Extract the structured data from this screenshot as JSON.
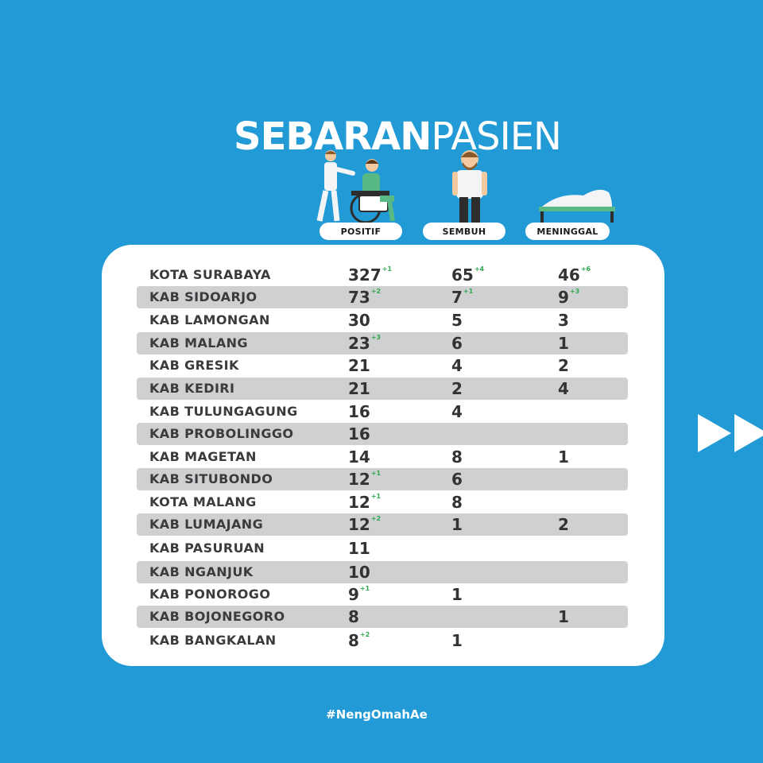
{
  "title": {
    "bold": "SEBARAN",
    "light": "PASIEN"
  },
  "columns": {
    "positif": "POSITIF",
    "sembuh": "SEMBUH",
    "meninggal": "MENINGGAL"
  },
  "rows": [
    {
      "name": "KOTA SURABAYA",
      "positif": "327",
      "positif_delta": "+1",
      "sembuh": "65",
      "sembuh_delta": "+4",
      "meninggal": "46",
      "meninggal_delta": "+6"
    },
    {
      "name": "KAB SIDOARJO",
      "positif": "73",
      "positif_delta": "+2",
      "sembuh": "7",
      "sembuh_delta": "+1",
      "meninggal": "9",
      "meninggal_delta": "+3"
    },
    {
      "name": "KAB LAMONGAN",
      "positif": "30",
      "positif_delta": "",
      "sembuh": "5",
      "sembuh_delta": "",
      "meninggal": "3",
      "meninggal_delta": ""
    },
    {
      "name": "KAB MALANG",
      "positif": "23",
      "positif_delta": "+3",
      "sembuh": "6",
      "sembuh_delta": "",
      "meninggal": "1",
      "meninggal_delta": ""
    },
    {
      "name": "KAB GRESIK",
      "positif": "21",
      "positif_delta": "",
      "sembuh": "4",
      "sembuh_delta": "",
      "meninggal": "2",
      "meninggal_delta": ""
    },
    {
      "name": "KAB KEDIRI",
      "positif": "21",
      "positif_delta": "",
      "sembuh": "2",
      "sembuh_delta": "",
      "meninggal": "4",
      "meninggal_delta": ""
    },
    {
      "name": "KAB TULUNGAGUNG",
      "positif": "16",
      "positif_delta": "",
      "sembuh": "4",
      "sembuh_delta": "",
      "meninggal": "",
      "meninggal_delta": ""
    },
    {
      "name": "KAB PROBOLINGGO",
      "positif": "16",
      "positif_delta": "",
      "sembuh": "",
      "sembuh_delta": "",
      "meninggal": "",
      "meninggal_delta": ""
    },
    {
      "name": "KAB MAGETAN",
      "positif": "14",
      "positif_delta": "",
      "sembuh": "8",
      "sembuh_delta": "",
      "meninggal": "1",
      "meninggal_delta": ""
    },
    {
      "name": "KAB SITUBONDO",
      "positif": "12",
      "positif_delta": "+1",
      "sembuh": "6",
      "sembuh_delta": "",
      "meninggal": "",
      "meninggal_delta": ""
    },
    {
      "name": "KOTA MALANG",
      "positif": "12",
      "positif_delta": "+1",
      "sembuh": "8",
      "sembuh_delta": "",
      "meninggal": "",
      "meninggal_delta": ""
    },
    {
      "name": "KAB LUMAJANG",
      "positif": "12",
      "positif_delta": "+2",
      "sembuh": "1",
      "sembuh_delta": "",
      "meninggal": "2",
      "meninggal_delta": ""
    },
    {
      "name": "KAB PASURUAN",
      "positif": "11",
      "positif_delta": "",
      "sembuh": "",
      "sembuh_delta": "",
      "meninggal": "",
      "meninggal_delta": ""
    },
    {
      "name": "KAB NGANJUK",
      "positif": "10",
      "positif_delta": "",
      "sembuh": "",
      "sembuh_delta": "",
      "meninggal": "",
      "meninggal_delta": ""
    },
    {
      "name": "KAB PONOROGO",
      "positif": "9",
      "positif_delta": "+1",
      "sembuh": "1",
      "sembuh_delta": "",
      "meninggal": "",
      "meninggal_delta": ""
    },
    {
      "name": "KAB BOJONEGORO",
      "positif": "8",
      "positif_delta": "",
      "sembuh": "",
      "sembuh_delta": "",
      "meninggal": "1",
      "meninggal_delta": ""
    },
    {
      "name": "KAB BANGKALAN",
      "positif": "8",
      "positif_delta": "+2",
      "sembuh": "1",
      "sembuh_delta": "",
      "meninggal": "",
      "meninggal_delta": ""
    }
  ],
  "hashtag": "#NengOmahAe",
  "icons": {
    "positif": "wheelchair-patient-icon",
    "sembuh": "recovered-man-icon",
    "meninggal": "hospital-bed-icon",
    "next": "double-arrow-right-icon"
  },
  "colors": {
    "background": "#229ad6",
    "row_shade": "#cfd0d2",
    "delta": "#2fa84f",
    "card": "#ffffff"
  }
}
